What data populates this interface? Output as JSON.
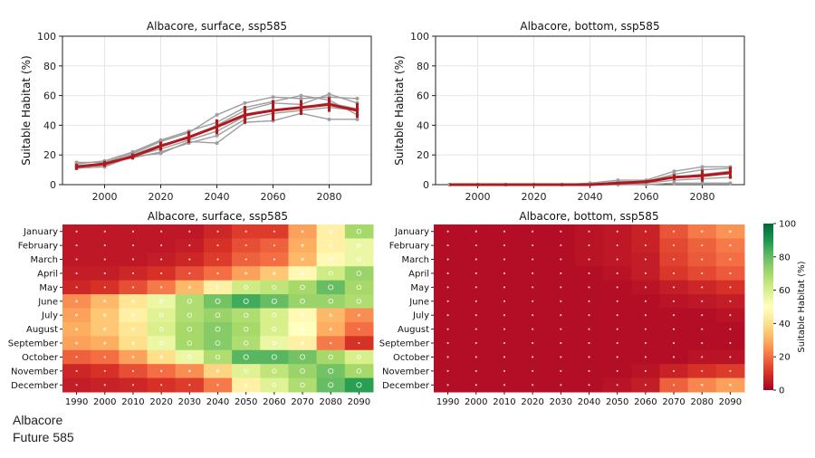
{
  "chart_data": [
    {
      "type": "line",
      "title": "Albacore, surface, ssp585",
      "ylabel": "Suitable Habitat (%)",
      "xlabel": "",
      "xlim": [
        1985,
        2095
      ],
      "ylim": [
        0,
        100
      ],
      "xticks": [
        2000,
        2020,
        2040,
        2060,
        2080
      ],
      "yticks": [
        0,
        20,
        40,
        60,
        80,
        100
      ],
      "grid": true,
      "x": [
        1990,
        2000,
        2010,
        2020,
        2030,
        2040,
        2050,
        2060,
        2070,
        2080,
        2090
      ],
      "members": [
        [
          15,
          15,
          21,
          29,
          35,
          47,
          55,
          59,
          58,
          59,
          58
        ],
        [
          12,
          13,
          20,
          27,
          31,
          40,
          50,
          55,
          54,
          61,
          55
        ],
        [
          11,
          12,
          19,
          24,
          30,
          36,
          46,
          50,
          52,
          55,
          51
        ],
        [
          13,
          14,
          18,
          22,
          28,
          33,
          44,
          48,
          50,
          52,
          50
        ],
        [
          12,
          13,
          19,
          21,
          29,
          28,
          42,
          43,
          48,
          44,
          44
        ],
        [
          14,
          16,
          22,
          30,
          36,
          42,
          52,
          56,
          60,
          57,
          47
        ]
      ],
      "mean": [
        12,
        14,
        19,
        26,
        32,
        39,
        47,
        50,
        52,
        54,
        50
      ],
      "err": [
        2,
        2,
        2,
        3,
        4,
        5,
        6,
        7,
        5,
        5,
        5
      ]
    },
    {
      "type": "line",
      "title": "Albacore, bottom, ssp585",
      "ylabel": "Suitable Habitat (%)",
      "xlabel": "",
      "xlim": [
        1985,
        2095
      ],
      "ylim": [
        0,
        100
      ],
      "xticks": [
        2000,
        2020,
        2040,
        2060,
        2080
      ],
      "yticks": [
        0,
        20,
        40,
        60,
        80,
        100
      ],
      "grid": true,
      "x": [
        1990,
        2000,
        2010,
        2020,
        2030,
        2040,
        2050,
        2060,
        2070,
        2080,
        2090
      ],
      "members": [
        [
          0,
          0,
          0,
          0,
          0,
          1,
          3,
          3,
          9,
          12,
          12
        ],
        [
          0,
          0,
          0,
          0,
          0,
          0,
          2,
          2,
          7,
          10,
          11
        ],
        [
          0,
          0,
          0,
          0,
          0,
          0,
          1,
          1,
          5,
          7,
          9
        ],
        [
          0,
          0,
          0,
          0,
          0,
          0,
          0,
          1,
          3,
          4,
          5
        ],
        [
          0,
          0,
          0,
          0,
          0,
          0,
          0,
          0,
          1,
          1,
          1
        ]
      ],
      "mean": [
        0,
        0,
        0,
        0,
        0,
        0,
        1,
        2,
        5,
        6,
        8
      ],
      "err": [
        0,
        0,
        0,
        0,
        0,
        0,
        1,
        1,
        2,
        4,
        4
      ]
    },
    {
      "type": "heatmap",
      "title": "Albacore, surface, ssp585",
      "rows": [
        "January",
        "February",
        "March",
        "April",
        "May",
        "June",
        "July",
        "August",
        "September",
        "October",
        "November",
        "December"
      ],
      "columns": [
        "1990",
        "2000",
        "2010",
        "2020",
        "2030",
        "2040",
        "2050",
        "2060",
        "2070",
        "2080",
        "2090"
      ],
      "values": [
        [
          5,
          5,
          5,
          5,
          5,
          8,
          12,
          12,
          28,
          45,
          70
        ],
        [
          5,
          5,
          5,
          5,
          6,
          10,
          15,
          18,
          30,
          45,
          55
        ],
        [
          5,
          5,
          5,
          6,
          8,
          12,
          18,
          20,
          32,
          48,
          55
        ],
        [
          6,
          6,
          8,
          10,
          15,
          20,
          28,
          35,
          48,
          62,
          72
        ],
        [
          8,
          10,
          15,
          22,
          32,
          45,
          62,
          65,
          70,
          80,
          70
        ],
        [
          25,
          32,
          42,
          55,
          68,
          78,
          85,
          80,
          72,
          72,
          68
        ],
        [
          28,
          35,
          45,
          58,
          68,
          72,
          68,
          60,
          48,
          32,
          25
        ],
        [
          30,
          35,
          42,
          60,
          70,
          75,
          70,
          60,
          50,
          30,
          20
        ],
        [
          28,
          30,
          40,
          55,
          70,
          75,
          68,
          55,
          45,
          22,
          10
        ],
        [
          18,
          20,
          28,
          40,
          55,
          68,
          82,
          82,
          78,
          70,
          60
        ],
        [
          8,
          10,
          15,
          20,
          25,
          38,
          58,
          65,
          72,
          78,
          70
        ],
        [
          6,
          7,
          8,
          10,
          12,
          22,
          45,
          58,
          68,
          80,
          88
        ]
      ]
    },
    {
      "type": "heatmap",
      "title": "Albacore, bottom, ssp585",
      "rows": [
        "January",
        "February",
        "March",
        "April",
        "May",
        "June",
        "July",
        "August",
        "September",
        "October",
        "November",
        "December"
      ],
      "columns": [
        "1990",
        "2000",
        "2010",
        "2020",
        "2030",
        "2040",
        "2050",
        "2060",
        "2070",
        "2080",
        "2090"
      ],
      "values": [
        [
          3,
          3,
          3,
          3,
          3,
          4,
          5,
          7,
          16,
          22,
          26
        ],
        [
          3,
          3,
          3,
          3,
          3,
          4,
          5,
          7,
          14,
          18,
          22
        ],
        [
          3,
          3,
          3,
          3,
          3,
          4,
          5,
          6,
          13,
          17,
          20
        ],
        [
          3,
          3,
          3,
          3,
          3,
          3,
          4,
          6,
          11,
          14,
          17
        ],
        [
          3,
          3,
          3,
          3,
          3,
          3,
          3,
          4,
          6,
          8,
          10
        ],
        [
          3,
          3,
          3,
          3,
          3,
          3,
          3,
          3,
          4,
          5,
          6
        ],
        [
          3,
          3,
          3,
          3,
          3,
          3,
          3,
          3,
          3,
          3,
          4
        ],
        [
          3,
          3,
          3,
          3,
          3,
          3,
          3,
          3,
          3,
          3,
          3
        ],
        [
          3,
          3,
          3,
          3,
          3,
          3,
          3,
          3,
          3,
          3,
          3
        ],
        [
          3,
          3,
          3,
          3,
          3,
          3,
          3,
          3,
          3,
          4,
          4
        ],
        [
          3,
          3,
          3,
          3,
          3,
          3,
          3,
          4,
          7,
          10,
          12
        ],
        [
          3,
          3,
          3,
          3,
          3,
          3,
          4,
          6,
          18,
          24,
          28
        ]
      ],
      "colorbar": {
        "label": "Suitable Habitat (%)",
        "min": 0,
        "max": 100,
        "ticks": [
          0,
          20,
          40,
          60,
          80,
          100
        ],
        "cmap": "RdYlGn"
      }
    }
  ],
  "caption": {
    "line1": "Albacore",
    "line2": "Future 585"
  }
}
